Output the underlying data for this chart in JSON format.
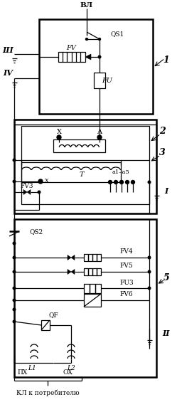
{
  "background": "#ffffff",
  "line_color": "#000000",
  "figsize": [
    2.49,
    5.65
  ],
  "dpi": 100,
  "labels": {
    "VL": "ВЛ",
    "QS1": "QS1",
    "FV": "FV",
    "FU": "FU",
    "III": "III",
    "IV": "IV",
    "box1": "1",
    "X": "X",
    "A": "A",
    "x": "x",
    "a1a5": "a1–a5",
    "T": "T",
    "FV3": "FV3",
    "box2": "2",
    "box3": "3",
    "I": "I",
    "QS2": "QS2",
    "FV4": "FV4",
    "FV5": "FV5",
    "FU3": "FU3",
    "FV6": "FV6",
    "box5": "5",
    "II": "II",
    "QF": "QF",
    "L1": "L1",
    "L2": "L2",
    "PX": "ПX",
    "OX": "ОX",
    "KL": "КЛ к потребителю"
  }
}
